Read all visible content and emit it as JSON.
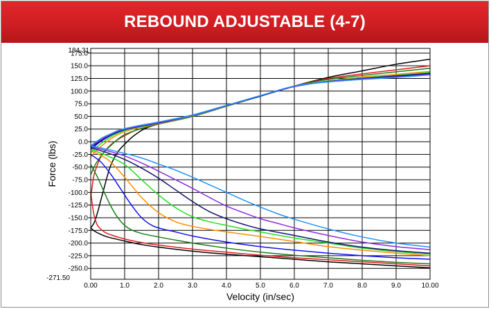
{
  "header": {
    "title": "REBOUND ADJUSTABLE (4-7)"
  },
  "chart_data": {
    "type": "line",
    "xlabel": "Velocity (in/sec)",
    "ylabel": "Force (lbs)",
    "xlim": [
      0,
      10
    ],
    "ylim": [
      -271.5,
      184.31
    ],
    "grid": true,
    "x_ticks": [
      "0.00",
      "1.0",
      "2.0",
      "3.0",
      "4.0",
      "5.0",
      "6.0",
      "7.0",
      "8.0",
      "9.0",
      "10.00"
    ],
    "y_ticks": [
      "175.0",
      "150.0",
      "125.0",
      "100.0",
      "75.0",
      "50.0",
      "25.0",
      "0.0",
      "-25.0",
      "-50.0",
      "-75.0",
      "-100.0",
      "-125.0",
      "-150.0",
      "-175.0",
      "-200.0",
      "-225.0",
      "-250.0"
    ],
    "y_max_label": "184.31",
    "y_min_label": "-271.50",
    "series": [
      {
        "color": "#000000",
        "x": [
          0,
          0.1,
          0.2,
          0.3,
          0.4,
          0.5,
          0.6,
          0.8,
          1,
          1.2,
          1.4,
          1.6,
          2,
          3,
          4,
          5,
          6,
          7,
          8,
          9,
          10
        ],
        "y": [
          -170,
          -160,
          -140,
          -115,
          -90,
          -65,
          -45,
          -20,
          -5,
          8,
          18,
          26,
          35,
          50,
          70,
          90,
          110,
          127,
          140,
          153,
          163
        ]
      },
      {
        "color": "#e01b1b",
        "x": [
          0,
          0.05,
          0.1,
          0.2,
          0.3,
          0.5,
          0.7,
          1,
          1.3,
          1.6,
          2,
          3,
          4,
          5,
          6,
          7,
          8,
          9,
          10
        ],
        "y": [
          -110,
          -85,
          -65,
          -45,
          -30,
          -12,
          0,
          12,
          22,
          28,
          35,
          50,
          70,
          90,
          110,
          125,
          134,
          142,
          150
        ]
      },
      {
        "color": "#1a7a1a",
        "x": [
          0,
          0.1,
          0.2,
          0.4,
          0.6,
          0.8,
          1,
          1.3,
          1.6,
          2,
          3,
          4,
          5,
          6,
          7,
          8,
          9,
          10
        ],
        "y": [
          -65,
          -50,
          -38,
          -20,
          -7,
          5,
          14,
          22,
          28,
          35,
          50,
          70,
          90,
          110,
          123,
          131,
          138,
          145
        ]
      },
      {
        "color": "#ff8c00",
        "x": [
          0,
          0.1,
          0.2,
          0.4,
          0.6,
          0.8,
          1,
          1.2,
          1.5,
          2,
          3,
          4,
          5,
          6,
          7,
          8,
          9,
          10
        ],
        "y": [
          -30,
          -22,
          -15,
          -4,
          6,
          14,
          20,
          24,
          29,
          36,
          51,
          70,
          90,
          109,
          120,
          128,
          133,
          139
        ]
      },
      {
        "color": "#22dd22",
        "x": [
          0,
          0.1,
          0.2,
          0.4,
          0.6,
          0.8,
          1,
          1.2,
          1.5,
          2,
          3,
          4,
          5,
          6,
          7,
          8,
          9,
          10
        ],
        "y": [
          -22,
          -15,
          -9,
          1,
          10,
          17,
          22,
          26,
          30,
          37,
          51,
          70,
          90,
          109,
          120,
          126,
          131,
          137
        ]
      },
      {
        "color": "#1010b0",
        "x": [
          0,
          0.1,
          0.2,
          0.4,
          0.6,
          0.8,
          1,
          1.2,
          1.5,
          2,
          3,
          4,
          5,
          6,
          7,
          8,
          9,
          10
        ],
        "y": [
          -15,
          -10,
          -4,
          5,
          13,
          19,
          24,
          27,
          31,
          37,
          52,
          71,
          90,
          109,
          119,
          125,
          130,
          135
        ]
      },
      {
        "color": "#101070",
        "x": [
          0,
          0.1,
          0.2,
          0.4,
          0.6,
          0.8,
          1,
          1.2,
          1.5,
          2,
          3,
          4,
          5,
          6,
          7,
          8,
          9,
          10
        ],
        "y": [
          -12,
          -7,
          -2,
          7,
          14,
          20,
          25,
          28,
          32,
          38,
          52,
          71,
          91,
          109,
          119,
          124,
          129,
          134
        ]
      },
      {
        "color": "#8a2be2",
        "x": [
          0,
          0.1,
          0.2,
          0.4,
          0.6,
          0.8,
          1,
          1.2,
          1.5,
          2,
          3,
          4,
          5,
          6,
          7,
          8,
          9,
          10
        ],
        "y": [
          -10,
          -5,
          0,
          8,
          15,
          21,
          25,
          28,
          32,
          38,
          52,
          71,
          91,
          109,
          119,
          124,
          128,
          133
        ]
      },
      {
        "color": "#1e90ff",
        "x": [
          0,
          0.1,
          0.2,
          0.4,
          0.6,
          0.8,
          1,
          1.2,
          1.5,
          2,
          3,
          4,
          5,
          6,
          7,
          8,
          9,
          10
        ],
        "y": [
          -8,
          -3,
          2,
          10,
          16,
          22,
          26,
          29,
          33,
          39,
          53,
          72,
          91,
          110,
          118,
          123,
          127,
          132
        ]
      },
      {
        "color": "#000000",
        "x": [
          0,
          0.1,
          0.3,
          0.5,
          1,
          1.5,
          2,
          3,
          4,
          5,
          6,
          7,
          8,
          9,
          10
        ],
        "y": [
          -170,
          -176,
          -183,
          -188,
          -196,
          -203,
          -208,
          -216,
          -222,
          -227,
          -232,
          -237,
          -241,
          -245,
          -249
        ]
      },
      {
        "color": "#e01b1b",
        "x": [
          0,
          0.05,
          0.1,
          0.2,
          0.4,
          0.6,
          1,
          1.5,
          2,
          3,
          4,
          5,
          6,
          7,
          8,
          9,
          10
        ],
        "y": [
          -100,
          -125,
          -145,
          -165,
          -178,
          -184,
          -192,
          -199,
          -204,
          -212,
          -218,
          -224,
          -229,
          -233,
          -237,
          -241,
          -245
        ]
      },
      {
        "color": "#1a7a1a",
        "x": [
          0,
          0.2,
          0.4,
          0.6,
          0.8,
          1,
          1.2,
          1.5,
          2,
          3,
          4,
          5,
          6,
          7,
          8,
          9,
          10
        ],
        "y": [
          -45,
          -70,
          -100,
          -128,
          -150,
          -165,
          -174,
          -181,
          -188,
          -200,
          -210,
          -218,
          -224,
          -229,
          -234,
          -238,
          -241
        ]
      },
      {
        "color": "#1010ee",
        "x": [
          0,
          0.3,
          0.6,
          0.9,
          1.2,
          1.5,
          1.8,
          2.1,
          2.5,
          3,
          4,
          5,
          6,
          7,
          8,
          9,
          10
        ],
        "y": [
          -25,
          -40,
          -65,
          -95,
          -125,
          -150,
          -165,
          -172,
          -178,
          -186,
          -198,
          -207,
          -214,
          -220,
          -225,
          -229,
          -232
        ]
      },
      {
        "color": "#ff8c00",
        "x": [
          0,
          0.5,
          1,
          1.5,
          2,
          2.5,
          3,
          3.5,
          4,
          5,
          6,
          7,
          8,
          9,
          10
        ],
        "y": [
          -18,
          -35,
          -70,
          -110,
          -140,
          -158,
          -167,
          -173,
          -178,
          -187,
          -197,
          -207,
          -214,
          -220,
          -225
        ]
      },
      {
        "color": "#22dd22",
        "x": [
          0,
          0.5,
          1,
          1.5,
          2,
          2.5,
          3,
          3.5,
          4,
          4.5,
          5,
          6,
          7,
          8,
          9,
          10
        ],
        "y": [
          -15,
          -28,
          -45,
          -75,
          -105,
          -130,
          -148,
          -158,
          -165,
          -172,
          -178,
          -190,
          -200,
          -210,
          -217,
          -222
        ]
      },
      {
        "color": "#101070",
        "x": [
          0,
          0.5,
          1,
          1.5,
          2,
          2.5,
          3,
          3.5,
          4,
          4.5,
          5,
          6,
          7,
          8,
          9,
          10
        ],
        "y": [
          -12,
          -22,
          -35,
          -52,
          -72,
          -95,
          -118,
          -138,
          -152,
          -163,
          -172,
          -185,
          -198,
          -208,
          -215,
          -220
        ]
      },
      {
        "color": "#8a2be2",
        "x": [
          0,
          0.5,
          1,
          1.5,
          2,
          2.5,
          3,
          3.5,
          4,
          4.5,
          5,
          5.5,
          6,
          7,
          8,
          9,
          10
        ],
        "y": [
          -10,
          -18,
          -28,
          -42,
          -58,
          -75,
          -92,
          -110,
          -127,
          -140,
          -152,
          -161,
          -170,
          -185,
          -198,
          -207,
          -213
        ]
      },
      {
        "color": "#1e90ff",
        "x": [
          0,
          0.5,
          1,
          1.5,
          2,
          2.5,
          3,
          3.5,
          4,
          4.5,
          5,
          5.5,
          6,
          7,
          8,
          9,
          10
        ],
        "y": [
          -8,
          -15,
          -23,
          -32,
          -44,
          -56,
          -70,
          -85,
          -100,
          -115,
          -129,
          -142,
          -153,
          -172,
          -188,
          -200,
          -208
        ]
      }
    ]
  }
}
